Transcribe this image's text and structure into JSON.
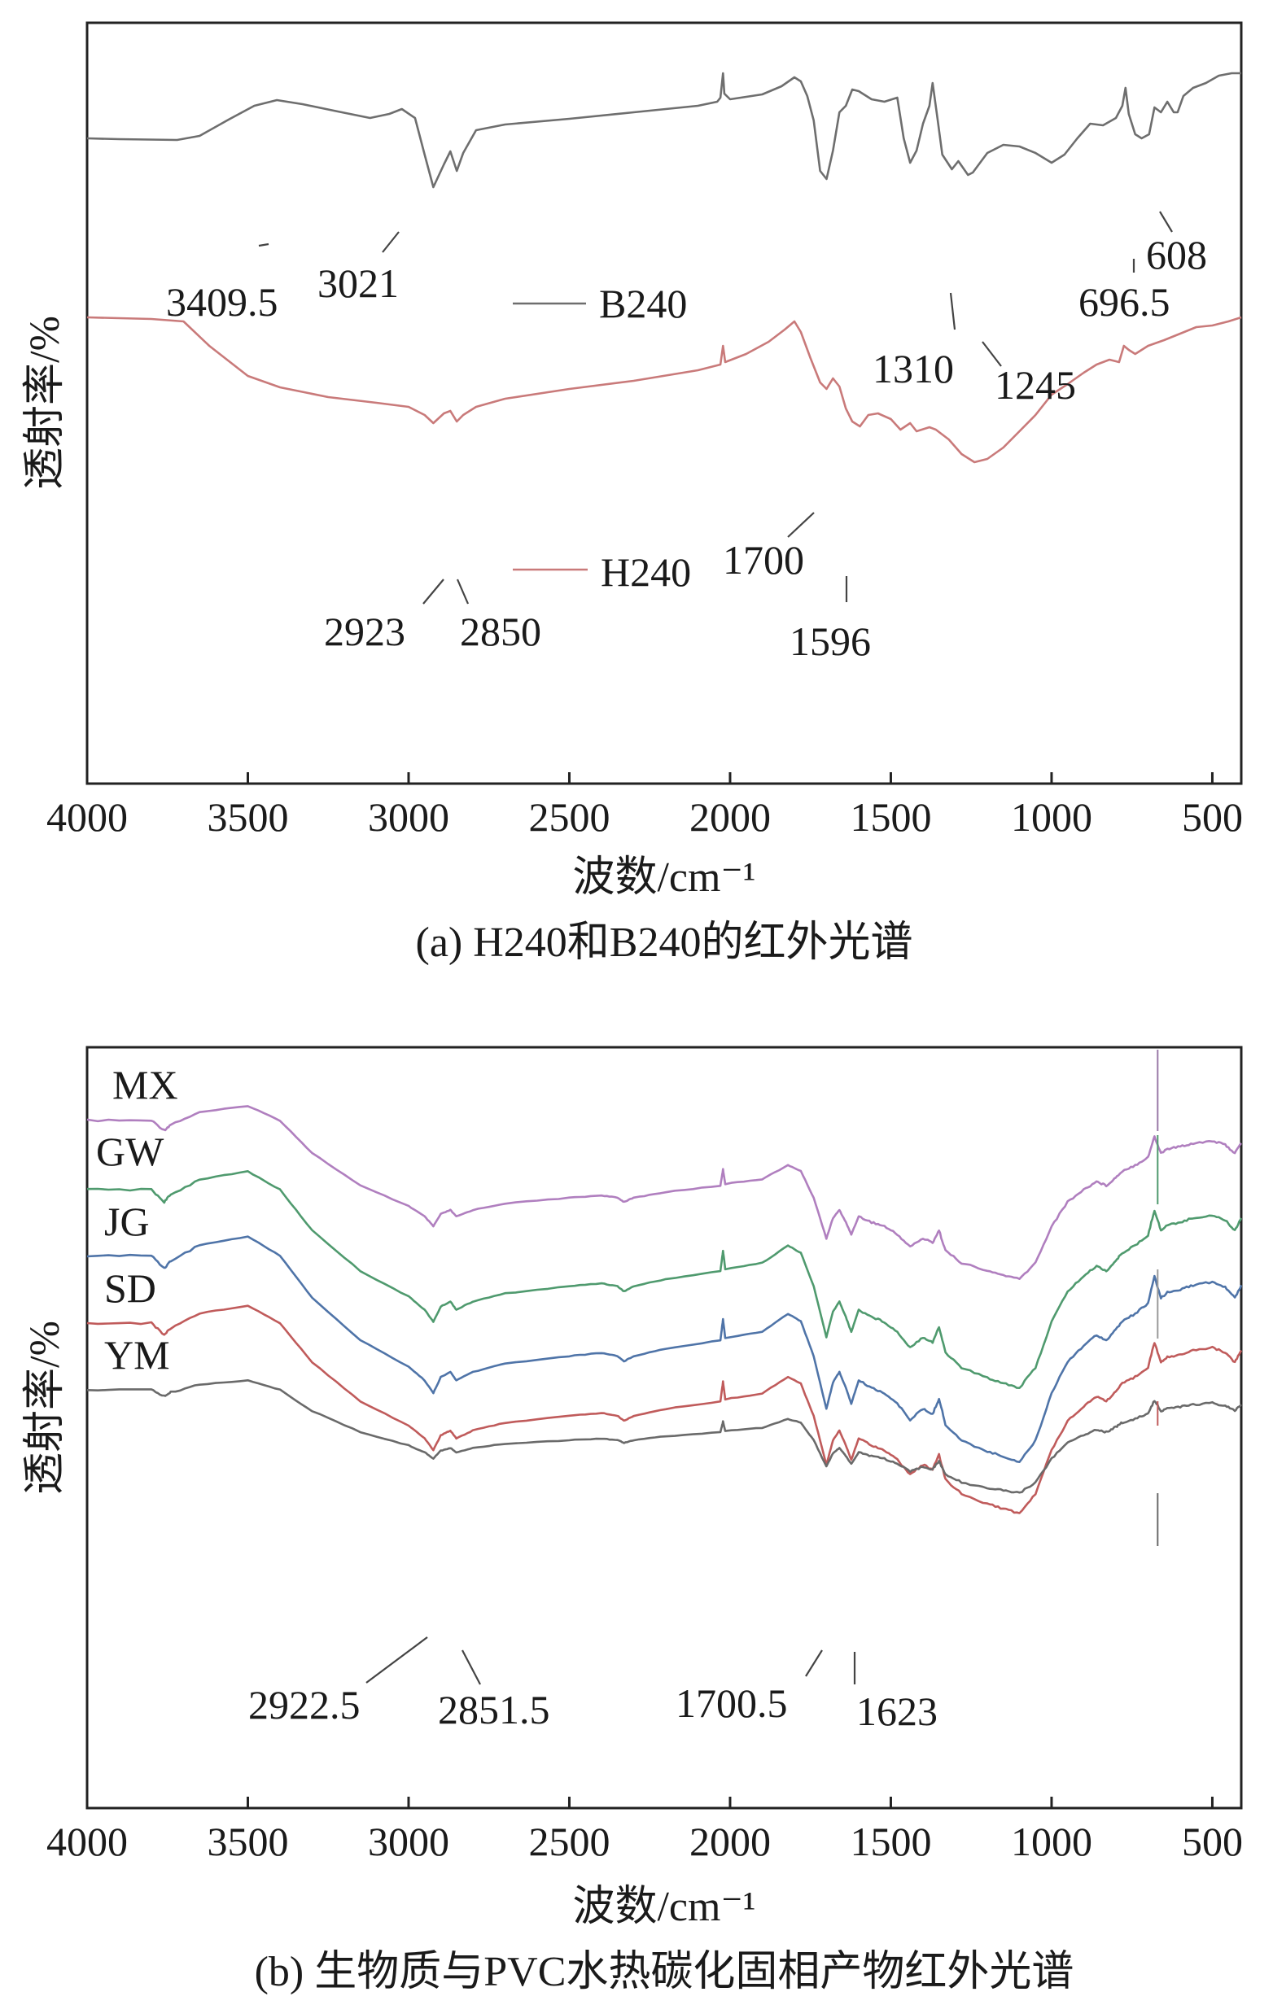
{
  "chart_data": [
    {
      "type": "line",
      "panel": "a",
      "caption": "(a) H240和B240的红外光谱",
      "xlabel": "波数/cm⁻¹",
      "ylabel": "透射率/%",
      "xlim": [
        4000,
        410
      ],
      "x_reversed": true,
      "xticks": [
        4000,
        3500,
        3000,
        2500,
        2000,
        1500,
        1000,
        500
      ],
      "yticks_shown": false,
      "legend": [
        {
          "name": "B240",
          "color": "#6e6e6e"
        },
        {
          "name": "H240",
          "color": "#c97a7a"
        }
      ],
      "series": [
        {
          "name": "B240",
          "color": "#6e6e6e",
          "baseline": 80,
          "points": [
            [
              4000,
              80
            ],
            [
              3900,
              81
            ],
            [
              3720,
              82
            ],
            [
              3650,
              77
            ],
            [
              3560,
              57
            ],
            [
              3480,
              40
            ],
            [
              3409.5,
              33
            ],
            [
              3330,
              38
            ],
            [
              3220,
              47
            ],
            [
              3120,
              55
            ],
            [
              3060,
              50
            ],
            [
              3021,
              44
            ],
            [
              2980,
              55
            ],
            [
              2950,
              100
            ],
            [
              2923,
              140
            ],
            [
              2890,
              112
            ],
            [
              2870,
              96
            ],
            [
              2850,
              120
            ],
            [
              2830,
              98
            ],
            [
              2790,
              70
            ],
            [
              2700,
              63
            ],
            [
              2500,
              56
            ],
            [
              2300,
              48
            ],
            [
              2100,
              40
            ],
            [
              2040,
              35
            ],
            [
              2030,
              30
            ],
            [
              2022,
              0
            ],
            [
              2018,
              25
            ],
            [
              2000,
              32
            ],
            [
              1900,
              26
            ],
            [
              1840,
              16
            ],
            [
              1800,
              5
            ],
            [
              1780,
              10
            ],
            [
              1760,
              28
            ],
            [
              1740,
              58
            ],
            [
              1720,
              120
            ],
            [
              1700,
              130
            ],
            [
              1680,
              95
            ],
            [
              1660,
              48
            ],
            [
              1640,
              40
            ],
            [
              1620,
              20
            ],
            [
              1600,
              22
            ],
            [
              1560,
              32
            ],
            [
              1520,
              35
            ],
            [
              1480,
              30
            ],
            [
              1460,
              80
            ],
            [
              1440,
              110
            ],
            [
              1420,
              95
            ],
            [
              1400,
              62
            ],
            [
              1380,
              40
            ],
            [
              1370,
              12
            ],
            [
              1355,
              55
            ],
            [
              1340,
              100
            ],
            [
              1310,
              118
            ],
            [
              1290,
              108
            ],
            [
              1260,
              125
            ],
            [
              1245,
              122
            ],
            [
              1200,
              98
            ],
            [
              1150,
              88
            ],
            [
              1100,
              90
            ],
            [
              1050,
              98
            ],
            [
              1000,
              110
            ],
            [
              960,
              100
            ],
            [
              920,
              80
            ],
            [
              880,
              62
            ],
            [
              840,
              64
            ],
            [
              800,
              55
            ],
            [
              780,
              40
            ],
            [
              770,
              18
            ],
            [
              760,
              50
            ],
            [
              740,
              75
            ],
            [
              720,
              80
            ],
            [
              696.5,
              75
            ],
            [
              680,
              42
            ],
            [
              660,
              48
            ],
            [
              640,
              35
            ],
            [
              620,
              48
            ],
            [
              608,
              48
            ],
            [
              590,
              28
            ],
            [
              560,
              18
            ],
            [
              520,
              12
            ],
            [
              480,
              3
            ],
            [
              440,
              0
            ],
            [
              410,
              0
            ]
          ]
        },
        {
          "name": "H240",
          "color": "#c97a7a",
          "baseline": 300,
          "points": [
            [
              4000,
              300
            ],
            [
              3800,
              302
            ],
            [
              3700,
              305
            ],
            [
              3620,
              335
            ],
            [
              3500,
              372
            ],
            [
              3400,
              386
            ],
            [
              3250,
              398
            ],
            [
              3100,
              405
            ],
            [
              3000,
              410
            ],
            [
              2950,
              420
            ],
            [
              2923,
              430
            ],
            [
              2890,
              418
            ],
            [
              2870,
              415
            ],
            [
              2850,
              428
            ],
            [
              2830,
              420
            ],
            [
              2790,
              410
            ],
            [
              2700,
              400
            ],
            [
              2500,
              388
            ],
            [
              2300,
              378
            ],
            [
              2100,
              365
            ],
            [
              2030,
              358
            ],
            [
              2022,
              335
            ],
            [
              2015,
              355
            ],
            [
              1950,
              345
            ],
            [
              1880,
              330
            ],
            [
              1830,
              315
            ],
            [
              1800,
              305
            ],
            [
              1780,
              318
            ],
            [
              1750,
              350
            ],
            [
              1720,
              380
            ],
            [
              1700,
              388
            ],
            [
              1680,
              375
            ],
            [
              1660,
              385
            ],
            [
              1640,
              412
            ],
            [
              1620,
              428
            ],
            [
              1596,
              434
            ],
            [
              1570,
              420
            ],
            [
              1540,
              418
            ],
            [
              1500,
              425
            ],
            [
              1470,
              438
            ],
            [
              1440,
              430
            ],
            [
              1420,
              440
            ],
            [
              1380,
              435
            ],
            [
              1360,
              438
            ],
            [
              1320,
              450
            ],
            [
              1280,
              468
            ],
            [
              1240,
              478
            ],
            [
              1200,
              474
            ],
            [
              1150,
              460
            ],
            [
              1100,
              440
            ],
            [
              1050,
              420
            ],
            [
              1000,
              395
            ],
            [
              950,
              382
            ],
            [
              900,
              368
            ],
            [
              860,
              358
            ],
            [
              820,
              352
            ],
            [
              790,
              355
            ],
            [
              775,
              335
            ],
            [
              760,
              340
            ],
            [
              740,
              345
            ],
            [
              700,
              335
            ],
            [
              650,
              328
            ],
            [
              600,
              320
            ],
            [
              550,
              312
            ],
            [
              500,
              310
            ],
            [
              450,
              305
            ],
            [
              410,
              300
            ]
          ]
        }
      ],
      "annotations": [
        {
          "text": "3409.5",
          "x": 3409.5
        },
        {
          "text": "3021",
          "x": 3021
        },
        {
          "text": "1310",
          "x": 1310
        },
        {
          "text": "1245",
          "x": 1245
        },
        {
          "text": "696.5",
          "x": 696.5
        },
        {
          "text": "608",
          "x": 608
        },
        {
          "text": "1700",
          "x": 1700
        },
        {
          "text": "2923",
          "x": 2923
        },
        {
          "text": "2850",
          "x": 2850
        },
        {
          "text": "1596",
          "x": 1596
        }
      ]
    },
    {
      "type": "line",
      "panel": "b",
      "caption": "(b) 生物质与PVC水热碳化固相产物红外光谱",
      "xlabel": "波数/cm⁻¹",
      "ylabel": "透射率/%",
      "xlim": [
        4000,
        410
      ],
      "x_reversed": true,
      "xticks": [
        4000,
        3500,
        3000,
        2500,
        2000,
        1500,
        1000,
        500
      ],
      "yticks_shown": false,
      "series": [
        {
          "name": "MX",
          "color": "#b07fbf",
          "offset": 0
        },
        {
          "name": "GW",
          "color": "#4f9a6e",
          "offset": 1
        },
        {
          "name": "JG",
          "color": "#4f74a8",
          "offset": 2
        },
        {
          "name": "SD",
          "color": "#c05b5b",
          "offset": 3
        },
        {
          "name": "YM",
          "color": "#6a6a6a",
          "offset": 4
        }
      ],
      "base_shape": [
        [
          4000,
          0
        ],
        [
          3800,
          0
        ],
        [
          3760,
          12
        ],
        [
          3740,
          5
        ],
        [
          3650,
          -10
        ],
        [
          3500,
          -18
        ],
        [
          3400,
          0
        ],
        [
          3300,
          40
        ],
        [
          3150,
          80
        ],
        [
          3000,
          105
        ],
        [
          2950,
          118
        ],
        [
          2923,
          130
        ],
        [
          2900,
          115
        ],
        [
          2870,
          110
        ],
        [
          2851.5,
          118
        ],
        [
          2800,
          110
        ],
        [
          2700,
          102
        ],
        [
          2500,
          95
        ],
        [
          2400,
          92
        ],
        [
          2350,
          95
        ],
        [
          2330,
          100
        ],
        [
          2300,
          95
        ],
        [
          2200,
          88
        ],
        [
          2030,
          80
        ],
        [
          2022,
          60
        ],
        [
          2015,
          78
        ],
        [
          1900,
          72
        ],
        [
          1820,
          55
        ],
        [
          1780,
          62
        ],
        [
          1740,
          95
        ],
        [
          1700.5,
          145
        ],
        [
          1680,
          120
        ],
        [
          1660,
          110
        ],
        [
          1640,
          125
        ],
        [
          1623,
          140
        ],
        [
          1600,
          118
        ],
        [
          1560,
          125
        ],
        [
          1520,
          130
        ],
        [
          1480,
          140
        ],
        [
          1440,
          155
        ],
        [
          1400,
          145
        ],
        [
          1370,
          150
        ],
        [
          1350,
          135
        ],
        [
          1330,
          160
        ],
        [
          1280,
          175
        ],
        [
          1200,
          185
        ],
        [
          1150,
          190
        ],
        [
          1100,
          195
        ],
        [
          1050,
          175
        ],
        [
          1000,
          130
        ],
        [
          950,
          100
        ],
        [
          900,
          85
        ],
        [
          860,
          75
        ],
        [
          830,
          80
        ],
        [
          800,
          70
        ],
        [
          780,
          62
        ],
        [
          740,
          55
        ],
        [
          700,
          45
        ],
        [
          680,
          20
        ],
        [
          660,
          40
        ],
        [
          640,
          35
        ],
        [
          600,
          32
        ],
        [
          560,
          28
        ],
        [
          500,
          25
        ],
        [
          460,
          30
        ],
        [
          430,
          40
        ],
        [
          410,
          28
        ]
      ],
      "annotations": [
        {
          "text": "2922.5",
          "x": 2922.5
        },
        {
          "text": "2851.5",
          "x": 2851.5
        },
        {
          "text": "1700.5",
          "x": 1700.5
        },
        {
          "text": "1623",
          "x": 1623
        }
      ]
    }
  ]
}
